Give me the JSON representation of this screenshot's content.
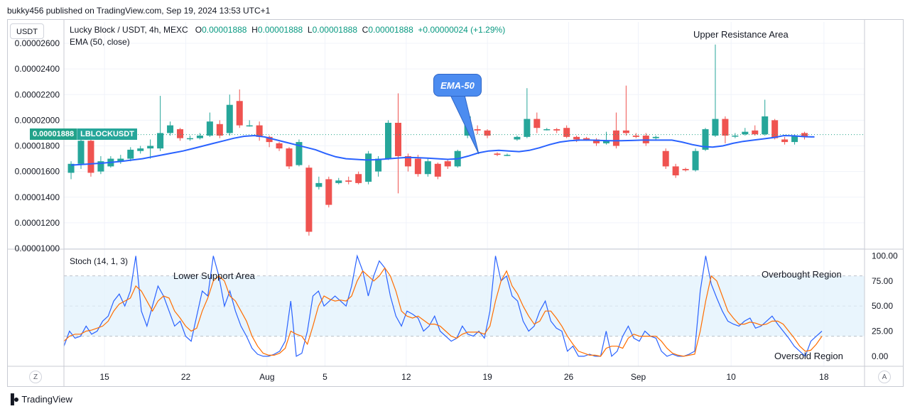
{
  "publisher_line": "bukky456 published on TradingView.com, Sep 19, 2024 13:53 UTC+1",
  "currency_button": "USDT",
  "legend": {
    "symbol": "Lucky Block / USDT, 4h, MEXC",
    "o_label": "O",
    "o_value": "0.00001888",
    "h_label": "H",
    "h_value": "0.00001888",
    "l_label": "L",
    "l_value": "0.00001888",
    "c_label": "C",
    "c_value": "0.00001888",
    "change": "+0.00000024 (+1.29%)",
    "ema_label": "EMA (50, close)"
  },
  "price_badge": {
    "price": "0.00001888",
    "symbol": "LBLOCKUSDT"
  },
  "annotations": {
    "upper_resistance": "Upper Resistance Area",
    "ema_callout": "EMA-50",
    "lower_support": "Lower Support Area",
    "overbought": "Overbought Region",
    "oversold": "Oversold Region"
  },
  "stoch_label": "Stoch (14, 1, 3)",
  "corner_buttons": {
    "left": "Z",
    "right": "A"
  },
  "branding": "TradingView",
  "colors": {
    "up": "#26a69a",
    "down": "#ef5350",
    "ema": "#2962ff",
    "k_line": "#2962ff",
    "d_line": "#ff6d00",
    "band_fill": "#e3f2fd",
    "badge": "#22a28a",
    "callout": "#4c8cf0"
  },
  "chart_data": [
    {
      "type": "candlestick",
      "title": "Lucky Block / USDT, 4h, MEXC",
      "y_ticks": [
        "0.00001000",
        "0.00001200",
        "0.00001400",
        "0.00001600",
        "0.00001800",
        "0.00002000",
        "0.00002200",
        "0.00002400",
        "0.00002600"
      ],
      "ylim": [
        1e-05,
        2.6e-05
      ],
      "x_ticks": [
        "15",
        "22",
        "Aug",
        "5",
        "12",
        "19",
        "26",
        "Sep",
        "10",
        "18"
      ],
      "x_tick_positions": [
        3.5,
        10.5,
        17.5,
        22.5,
        29.5,
        36.5,
        43.5,
        49.5,
        57.5,
        65.5
      ],
      "x_range": [
        0,
        69
      ],
      "last_price": 1.888e-05,
      "candles": [
        [
          1.59e-05,
          1.66e-05,
          1.54e-05,
          1.68e-05
        ],
        [
          1.66e-05,
          1.84e-05,
          1.62e-05,
          1.88e-05
        ],
        [
          1.84e-05,
          1.59e-05,
          1.56e-05,
          1.86e-05
        ],
        [
          1.6e-05,
          1.68e-05,
          1.58e-05,
          1.72e-05
        ],
        [
          1.64e-05,
          1.7e-05,
          1.63e-05,
          1.72e-05
        ],
        [
          1.68e-05,
          1.7e-05,
          1.66e-05,
          1.73e-05
        ],
        [
          1.7e-05,
          1.77e-05,
          1.68e-05,
          1.79e-05
        ],
        [
          1.76e-05,
          1.78e-05,
          1.74e-05,
          1.8e-05
        ],
        [
          1.78e-05,
          1.8e-05,
          1.7e-05,
          1.85e-05
        ],
        [
          1.78e-05,
          1.9e-05,
          1.76e-05,
          2.19e-05
        ],
        [
          1.9e-05,
          1.96e-05,
          1.88e-05,
          1.99e-05
        ],
        [
          1.93e-05,
          1.86e-05,
          1.84e-05,
          1.94e-05
        ],
        [
          1.86e-05,
          1.86e-05,
          1.84e-05,
          1.88e-05
        ],
        [
          1.86e-05,
          1.88e-05,
          1.85e-05,
          1.9e-05
        ],
        [
          1.88e-05,
          1.99e-05,
          1.87e-05,
          2.06e-05
        ],
        [
          1.97e-05,
          1.88e-05,
          1.86e-05,
          2e-05
        ],
        [
          1.9e-05,
          2.12e-05,
          1.88e-05,
          2.2e-05
        ],
        [
          2.15e-05,
          1.96e-05,
          1.94e-05,
          2.24e-05
        ],
        [
          1.96e-05,
          1.96e-05,
          1.95e-05,
          2e-05
        ],
        [
          1.96e-05,
          1.87e-05,
          1.84e-05,
          1.99e-05
        ],
        [
          1.87e-05,
          1.83e-05,
          1.79e-05,
          1.88e-05
        ],
        [
          1.82e-05,
          1.78e-05,
          1.76e-05,
          1.83e-05
        ],
        [
          1.78e-05,
          1.64e-05,
          1.62e-05,
          1.79e-05
        ],
        [
          1.65e-05,
          1.83e-05,
          1.64e-05,
          1.85e-05
        ],
        [
          1.63e-05,
          1.13e-05,
          1.1e-05,
          1.65e-05
        ],
        [
          1.48e-05,
          1.51e-05,
          1.46e-05,
          1.56e-05
        ],
        [
          1.54e-05,
          1.34e-05,
          1.32e-05,
          1.56e-05
        ],
        [
          1.51e-05,
          1.53e-05,
          1.5e-05,
          1.55e-05
        ],
        [
          1.53e-05,
          1.52e-05,
          1.5e-05,
          1.56e-05
        ],
        [
          1.58e-05,
          1.51e-05,
          1.5e-05,
          1.6e-05
        ],
        [
          1.52e-05,
          1.74e-05,
          1.5e-05,
          1.76e-05
        ],
        [
          1.6e-05,
          1.7e-05,
          1.56e-05,
          1.72e-05
        ],
        [
          1.7e-05,
          1.98e-05,
          1.69e-05,
          2e-05
        ],
        [
          1.98e-05,
          1.72e-05,
          1.43e-05,
          2.21e-05
        ],
        [
          1.72e-05,
          1.64e-05,
          1.6e-05,
          1.74e-05
        ],
        [
          1.7e-05,
          1.58e-05,
          1.56e-05,
          1.73e-05
        ],
        [
          1.58e-05,
          1.68e-05,
          1.56e-05,
          1.7e-05
        ],
        [
          1.66e-05,
          1.56e-05,
          1.54e-05,
          1.67e-05
        ],
        [
          1.68e-05,
          1.64e-05,
          1.62e-05,
          1.69e-05
        ],
        [
          1.64e-05,
          1.76e-05,
          1.63e-05,
          1.77e-05
        ],
        [
          1.88e-05,
          2.03e-05,
          1.86e-05,
          2.04e-05
        ],
        [
          1.93e-05,
          1.92e-05,
          1.89e-05,
          1.96e-05
        ],
        [
          1.92e-05,
          1.88e-05,
          1.86e-05,
          1.93e-05
        ],
        [
          1.74e-05,
          1.73e-05,
          1.72e-05,
          1.75e-05
        ],
        [
          1.73e-05,
          1.73e-05,
          1.72e-05,
          1.74e-05
        ],
        [
          1.85e-05,
          1.87e-05,
          1.84e-05,
          1.88e-05
        ],
        [
          1.87e-05,
          2.01e-05,
          1.86e-05,
          2.25e-05
        ],
        [
          2.01e-05,
          1.94e-05,
          1.9e-05,
          2.06e-05
        ],
        [
          1.93e-05,
          1.93e-05,
          1.92e-05,
          1.94e-05
        ],
        [
          1.93e-05,
          1.92e-05,
          1.9e-05,
          1.94e-05
        ],
        [
          1.94e-05,
          1.87e-05,
          1.86e-05,
          1.96e-05
        ],
        [
          1.87e-05,
          1.85e-05,
          1.83e-05,
          1.88e-05
        ],
        [
          1.86e-05,
          1.85e-05,
          1.84e-05,
          1.87e-05
        ],
        [
          1.85e-05,
          1.82e-05,
          1.8e-05,
          1.86e-05
        ],
        [
          1.82e-05,
          1.84e-05,
          1.81e-05,
          1.91e-05
        ],
        [
          1.92e-05,
          1.8e-05,
          1.78e-05,
          2.06e-05
        ],
        [
          1.92e-05,
          1.9e-05,
          1.88e-05,
          2.27e-05
        ],
        [
          1.88e-05,
          1.87e-05,
          1.86e-05,
          1.9e-05
        ],
        [
          1.88e-05,
          1.82e-05,
          1.8e-05,
          1.9e-05
        ],
        [
          1.86e-05,
          1.87e-05,
          1.84e-05,
          1.88e-05
        ],
        [
          1.76e-05,
          1.64e-05,
          1.62e-05,
          1.78e-05
        ],
        [
          1.64e-05,
          1.57e-05,
          1.55e-05,
          1.66e-05
        ],
        [
          1.62e-05,
          1.61e-05,
          1.6e-05,
          1.63e-05
        ],
        [
          1.61e-05,
          1.76e-05,
          1.6e-05,
          1.78e-05
        ],
        [
          1.77e-05,
          1.93e-05,
          1.76e-05,
          1.94e-05
        ],
        [
          1.88e-05,
          2.01e-05,
          1.87e-05,
          2.59e-05
        ],
        [
          2.01e-05,
          1.88e-05,
          1.82e-05,
          2.03e-05
        ],
        [
          1.88e-05,
          1.88e-05,
          1.86e-05,
          1.9e-05
        ],
        [
          1.89e-05,
          1.91e-05,
          1.88e-05,
          1.94e-05
        ],
        [
          1.92e-05,
          1.89e-05,
          1.88e-05,
          1.96e-05
        ],
        [
          1.89e-05,
          2.03e-05,
          1.88e-05,
          2.16e-05
        ],
        [
          2e-05,
          1.86e-05,
          1.85e-05,
          2.01e-05
        ],
        [
          1.85e-05,
          1.83e-05,
          1.81e-05,
          1.87e-05
        ],
        [
          1.83e-05,
          1.88e-05,
          1.81e-05,
          1.89e-05
        ],
        [
          1.9e-05,
          1.87e-05,
          1.85e-05,
          1.91e-05
        ]
      ],
      "ema": {
        "name": "EMA (50, close)",
        "values": [
          1.65e-05,
          1.655e-05,
          1.66e-05,
          1.665e-05,
          1.672e-05,
          1.68e-05,
          1.69e-05,
          1.7e-05,
          1.715e-05,
          1.73e-05,
          1.745e-05,
          1.76e-05,
          1.78e-05,
          1.8e-05,
          1.82e-05,
          1.84e-05,
          1.86e-05,
          1.875e-05,
          1.88e-05,
          1.87e-05,
          1.85e-05,
          1.83e-05,
          1.81e-05,
          1.79e-05,
          1.77e-05,
          1.74e-05,
          1.715e-05,
          1.7e-05,
          1.695e-05,
          1.69e-05,
          1.692e-05,
          1.698e-05,
          1.705e-05,
          1.71e-05,
          1.708e-05,
          1.705e-05,
          1.7e-05,
          1.695e-05,
          1.7e-05,
          1.72e-05,
          1.745e-05,
          1.76e-05,
          1.765e-05,
          1.76e-05,
          1.755e-05,
          1.765e-05,
          1.785e-05,
          1.81e-05,
          1.83e-05,
          1.84e-05,
          1.845e-05,
          1.845e-05,
          1.842e-05,
          1.84e-05,
          1.84e-05,
          1.842e-05,
          1.845e-05,
          1.845e-05,
          1.845e-05,
          1.845e-05,
          1.83e-05,
          1.81e-05,
          1.795e-05,
          1.79e-05,
          1.8e-05,
          1.82e-05,
          1.835e-05,
          1.845e-05,
          1.855e-05,
          1.865e-05,
          1.88e-05,
          1.878e-05,
          1.872e-05,
          1.87e-05
        ]
      }
    },
    {
      "type": "line",
      "title": "Stoch (14, 1, 3)",
      "y_ticks": [
        "0.00",
        "25.00",
        "50.00",
        "75.00",
        "100.00"
      ],
      "ylim": [
        -10,
        106
      ],
      "band": [
        20,
        80
      ],
      "x_range": [
        0,
        69
      ],
      "series": [
        {
          "name": "%K",
          "color": "#2962ff",
          "values": [
            10,
            25,
            18,
            20,
            30,
            22,
            25,
            35,
            40,
            55,
            62,
            50,
            65,
            100,
            45,
            30,
            50,
            70,
            60,
            45,
            30,
            35,
            20,
            15,
            40,
            65,
            60,
            100,
            80,
            50,
            65,
            45,
            30,
            20,
            8,
            2,
            0,
            0,
            2,
            5,
            15,
            55,
            0,
            3,
            25,
            60,
            65,
            50,
            55,
            60,
            55,
            50,
            70,
            100,
            85,
            60,
            80,
            95,
            88,
            60,
            40,
            30,
            45,
            42,
            38,
            25,
            30,
            40,
            25,
            20,
            15,
            18,
            30,
            22,
            20,
            25,
            18,
            45,
            100,
            75,
            80,
            60,
            55,
            35,
            25,
            30,
            45,
            55,
            35,
            28,
            25,
            5,
            10,
            0,
            0,
            2,
            0,
            0,
            25,
            0,
            5,
            20,
            30,
            18,
            15,
            25,
            20,
            18,
            5,
            0,
            2,
            0,
            0,
            2,
            5,
            65,
            100,
            72,
            58,
            45,
            35,
            32,
            30,
            35,
            38,
            28,
            30,
            35,
            40,
            32,
            25,
            18,
            10,
            5,
            0,
            15,
            20,
            25
          ]
        },
        {
          "name": "%D",
          "color": "#ff6d00",
          "values": [
            15,
            20,
            22,
            22,
            25,
            26,
            28,
            30,
            35,
            45,
            52,
            55,
            58,
            70,
            65,
            55,
            45,
            55,
            60,
            58,
            45,
            38,
            30,
            25,
            28,
            45,
            58,
            75,
            80,
            75,
            60,
            55,
            45,
            35,
            20,
            10,
            3,
            1,
            1,
            3,
            8,
            25,
            22,
            20,
            12,
            30,
            50,
            60,
            57,
            55,
            56,
            55,
            60,
            75,
            85,
            80,
            75,
            80,
            88,
            80,
            65,
            45,
            40,
            38,
            40,
            36,
            32,
            32,
            30,
            25,
            20,
            18,
            22,
            24,
            24,
            24,
            22,
            30,
            55,
            75,
            85,
            70,
            62,
            50,
            40,
            32,
            35,
            45,
            45,
            38,
            30,
            20,
            12,
            5,
            3,
            1,
            1,
            0,
            8,
            10,
            10,
            8,
            18,
            22,
            20,
            20,
            20,
            20,
            15,
            8,
            3,
            1,
            0,
            1,
            2,
            25,
            55,
            80,
            75,
            60,
            45,
            38,
            32,
            32,
            34,
            33,
            31,
            32,
            35,
            35,
            32,
            25,
            18,
            10,
            5,
            6,
            12,
            20
          ]
        }
      ]
    }
  ]
}
